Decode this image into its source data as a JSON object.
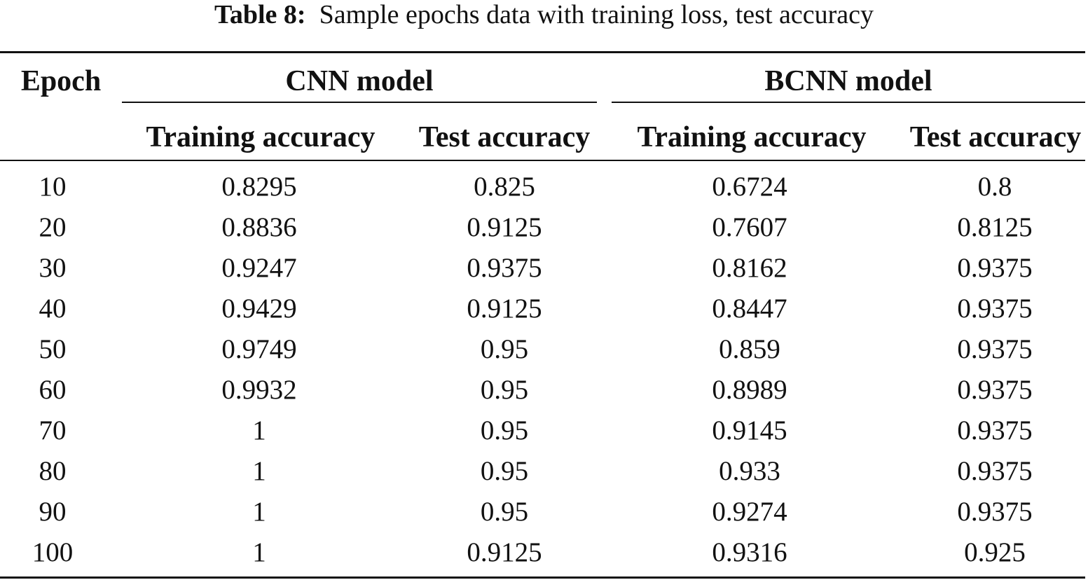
{
  "caption": {
    "label": "Table 8:",
    "text": "Sample epochs data with training loss, test accuracy"
  },
  "header": {
    "epoch": "Epoch",
    "group_cnn": "CNN model",
    "group_bcnn": "BCNN model",
    "cnn_train": "Training accuracy",
    "cnn_test": "Test accuracy",
    "bcnn_train": "Training accuracy",
    "bcnn_test": "Test accuracy"
  },
  "rows": [
    {
      "epoch": "10",
      "cnn_train": "0.8295",
      "cnn_test": "0.825",
      "bcnn_train": "0.6724",
      "bcnn_test": "0.8"
    },
    {
      "epoch": "20",
      "cnn_train": "0.8836",
      "cnn_test": "0.9125",
      "bcnn_train": "0.7607",
      "bcnn_test": "0.8125"
    },
    {
      "epoch": "30",
      "cnn_train": "0.9247",
      "cnn_test": "0.9375",
      "bcnn_train": "0.8162",
      "bcnn_test": "0.9375"
    },
    {
      "epoch": "40",
      "cnn_train": "0.9429",
      "cnn_test": "0.9125",
      "bcnn_train": "0.8447",
      "bcnn_test": "0.9375"
    },
    {
      "epoch": "50",
      "cnn_train": "0.9749",
      "cnn_test": "0.95",
      "bcnn_train": "0.859",
      "bcnn_test": "0.9375"
    },
    {
      "epoch": "60",
      "cnn_train": "0.9932",
      "cnn_test": "0.95",
      "bcnn_train": "0.8989",
      "bcnn_test": "0.9375"
    },
    {
      "epoch": "70",
      "cnn_train": "1",
      "cnn_test": "0.95",
      "bcnn_train": "0.9145",
      "bcnn_test": "0.9375"
    },
    {
      "epoch": "80",
      "cnn_train": "1",
      "cnn_test": "0.95",
      "bcnn_train": "0.933",
      "bcnn_test": "0.9375"
    },
    {
      "epoch": "90",
      "cnn_train": "1",
      "cnn_test": "0.95",
      "bcnn_train": "0.9274",
      "bcnn_test": "0.9375"
    },
    {
      "epoch": "100",
      "cnn_train": "1",
      "cnn_test": "0.9125",
      "bcnn_train": "0.9316",
      "bcnn_test": "0.925"
    }
  ]
}
